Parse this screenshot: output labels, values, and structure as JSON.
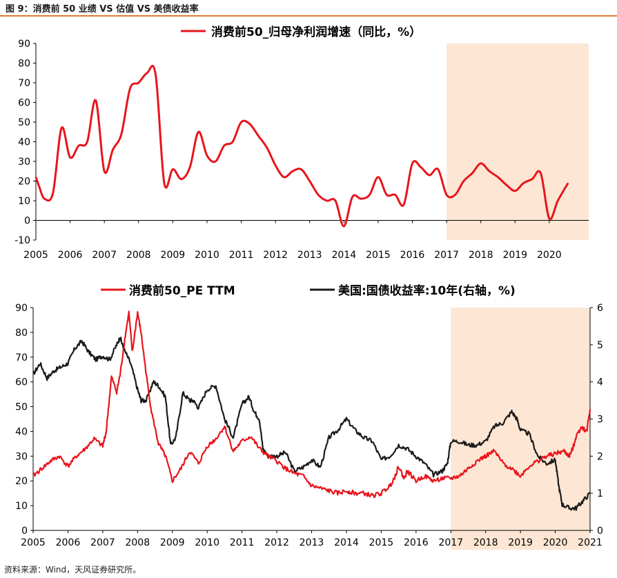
{
  "figure_title": "图 9：消费前 50 业绩 VS 估值 VS 美债收益率",
  "source": "资料来源：Wind，天风证券研究所。",
  "colors": {
    "red": "#e8141c",
    "black": "#1a1a1a",
    "shade": "#fde6d3",
    "rule": "#e07b39"
  },
  "chart_data": [
    {
      "type": "line",
      "legend": "消费前50_归母净利润增速（同比，%）",
      "xlabel": "",
      "ylabel": "",
      "xlim": [
        2005,
        2020.85
      ],
      "ylim": [
        -10,
        90
      ],
      "yticks": [
        -10,
        0,
        10,
        20,
        30,
        40,
        50,
        60,
        70,
        80,
        90
      ],
      "xticks": [
        "2005",
        "2006",
        "2007",
        "2008",
        "2009",
        "2010",
        "2011",
        "2012",
        "2013",
        "2014",
        "2015",
        "2016",
        "2017",
        "2018",
        "2019",
        "2020"
      ],
      "shaded_region": [
        2017,
        2020.95
      ],
      "series": [
        {
          "name": "消费前50_归母净利润增速（同比，%）",
          "color": "#e8141c",
          "x": [
            2005,
            2005.1,
            2005.25,
            2005.5,
            2005.75,
            2006.0,
            2006.25,
            2006.5,
            2006.75,
            2007.0,
            2007.25,
            2007.5,
            2007.75,
            2008.0,
            2008.25,
            2008.5,
            2008.75,
            2009.0,
            2009.25,
            2009.5,
            2009.75,
            2010.0,
            2010.25,
            2010.5,
            2010.75,
            2011.0,
            2011.25,
            2011.5,
            2011.75,
            2012.0,
            2012.25,
            2012.5,
            2012.75,
            2013.0,
            2013.25,
            2013.5,
            2013.75,
            2014.0,
            2014.25,
            2014.5,
            2014.75,
            2015.0,
            2015.25,
            2015.5,
            2015.75,
            2016.0,
            2016.25,
            2016.5,
            2016.75,
            2017.0,
            2017.25,
            2017.5,
            2017.75,
            2018.0,
            2018.25,
            2018.5,
            2018.75,
            2019.0,
            2019.25,
            2019.5,
            2019.75,
            2020.0,
            2020.25,
            2020.55
          ],
          "values": [
            22,
            17,
            11,
            14,
            47,
            32,
            38,
            40,
            61,
            25,
            36,
            44,
            67,
            70,
            75,
            74,
            19,
            26,
            21,
            27,
            45,
            33,
            30,
            38,
            40,
            50,
            49,
            43,
            37,
            28,
            22,
            25,
            26,
            20,
            13,
            10,
            10,
            -3,
            12,
            11,
            13,
            22,
            13,
            13,
            8,
            29,
            27,
            23,
            26,
            13,
            13,
            20,
            24,
            29,
            25,
            22,
            18,
            15,
            19,
            21,
            24,
            1,
            10,
            19
          ]
        }
      ]
    },
    {
      "type": "line",
      "xlabel": "",
      "ylabel": "",
      "ylabel_right": "",
      "xlim": [
        2005,
        2021
      ],
      "ylim": [
        0,
        90
      ],
      "ylim_right": [
        0,
        6
      ],
      "yticks": [
        0,
        10,
        20,
        30,
        40,
        50,
        60,
        70,
        80,
        90
      ],
      "yticks_right": [
        0,
        1,
        2,
        3,
        4,
        5,
        6
      ],
      "xticks": [
        "2005",
        "2006",
        "2007",
        "2008",
        "2009",
        "2010",
        "2011",
        "2012",
        "2013",
        "2014",
        "2015",
        "2016",
        "2017",
        "2018",
        "2019",
        "2020",
        "2021"
      ],
      "shaded_region": [
        2017,
        2021
      ],
      "series": [
        {
          "name": "消费前50_PE TTM",
          "axis": "left",
          "color": "#e8141c",
          "x": [
            2005,
            2005.25,
            2005.5,
            2005.75,
            2006.0,
            2006.25,
            2006.5,
            2006.75,
            2007.0,
            2007.1,
            2007.25,
            2007.4,
            2007.5,
            2007.65,
            2007.75,
            2007.85,
            2008.0,
            2008.1,
            2008.25,
            2008.4,
            2008.6,
            2008.8,
            2009.0,
            2009.25,
            2009.5,
            2009.75,
            2010.0,
            2010.25,
            2010.5,
            2010.75,
            2011.0,
            2011.25,
            2011.5,
            2011.75,
            2012.0,
            2012.25,
            2012.5,
            2012.75,
            2013.0,
            2013.25,
            2013.5,
            2013.75,
            2014.0,
            2014.25,
            2014.5,
            2014.75,
            2015.0,
            2015.25,
            2015.4,
            2015.5,
            2015.65,
            2015.75,
            2016.0,
            2016.25,
            2016.5,
            2016.75,
            2017.0,
            2017.25,
            2017.5,
            2017.75,
            2018.0,
            2018.25,
            2018.5,
            2018.75,
            2019.0,
            2019.25,
            2019.5,
            2019.75,
            2020.0,
            2020.25,
            2020.4,
            2020.5,
            2020.6,
            2020.75,
            2020.9,
            2021.0
          ],
          "values": [
            22,
            25,
            28,
            30,
            26,
            30,
            33,
            37,
            34,
            40,
            62,
            56,
            63,
            79,
            88,
            72,
            88,
            80,
            63,
            48,
            35,
            30,
            20,
            25,
            32,
            27,
            34,
            37,
            42,
            32,
            36,
            38,
            33,
            30,
            28,
            25,
            23,
            22,
            18,
            17,
            16,
            15,
            16,
            15,
            15,
            14,
            15,
            18,
            22,
            26,
            21,
            24,
            20,
            22,
            20,
            21,
            21,
            22,
            25,
            28,
            30,
            32,
            27,
            25,
            22,
            26,
            28,
            30,
            31,
            32,
            30,
            33,
            38,
            42,
            40,
            49
          ]
        },
        {
          "name": "美国:国债收益率:10年(右轴，%)",
          "axis": "right",
          "color": "#1a1a1a",
          "x": [
            2005,
            2005.2,
            2005.4,
            2005.6,
            2005.8,
            2006.0,
            2006.2,
            2006.4,
            2006.6,
            2006.8,
            2007.0,
            2007.2,
            2007.4,
            2007.5,
            2007.6,
            2007.8,
            2008.0,
            2008.1,
            2008.25,
            2008.45,
            2008.6,
            2008.8,
            2008.95,
            2009.1,
            2009.3,
            2009.5,
            2009.6,
            2009.75,
            2010.0,
            2010.25,
            2010.5,
            2010.75,
            2011.0,
            2011.2,
            2011.35,
            2011.5,
            2011.6,
            2011.75,
            2012.0,
            2012.25,
            2012.5,
            2012.75,
            2013.0,
            2013.25,
            2013.5,
            2013.75,
            2014.0,
            2014.25,
            2014.5,
            2014.75,
            2015.0,
            2015.25,
            2015.5,
            2015.75,
            2016.0,
            2016.25,
            2016.5,
            2016.75,
            2016.9,
            2017.0,
            2017.25,
            2017.5,
            2017.75,
            2018.0,
            2018.25,
            2018.5,
            2018.75,
            2018.9,
            2019.0,
            2019.25,
            2019.5,
            2019.75,
            2020.0,
            2020.1,
            2020.2,
            2020.4,
            2020.6,
            2020.8,
            2021.0
          ],
          "values": [
            4.2,
            4.5,
            4.1,
            4.3,
            4.4,
            4.5,
            4.9,
            5.1,
            4.8,
            4.6,
            4.7,
            4.6,
            5.0,
            5.2,
            4.9,
            4.5,
            3.8,
            3.5,
            3.5,
            4.0,
            3.9,
            3.6,
            2.3,
            2.5,
            3.7,
            3.5,
            3.5,
            3.3,
            3.8,
            3.9,
            3.0,
            2.5,
            3.4,
            3.6,
            3.2,
            3.0,
            2.2,
            2.0,
            2.0,
            2.1,
            1.6,
            1.7,
            1.9,
            1.7,
            2.5,
            2.7,
            3.0,
            2.7,
            2.5,
            2.4,
            1.9,
            2.0,
            2.3,
            2.2,
            2.0,
            1.8,
            1.5,
            1.6,
            1.8,
            2.4,
            2.4,
            2.3,
            2.3,
            2.4,
            2.8,
            2.9,
            3.2,
            3.0,
            2.7,
            2.6,
            2.0,
            1.8,
            1.9,
            1.2,
            0.7,
            0.6,
            0.6,
            0.8,
            1.0
          ]
        }
      ]
    }
  ]
}
